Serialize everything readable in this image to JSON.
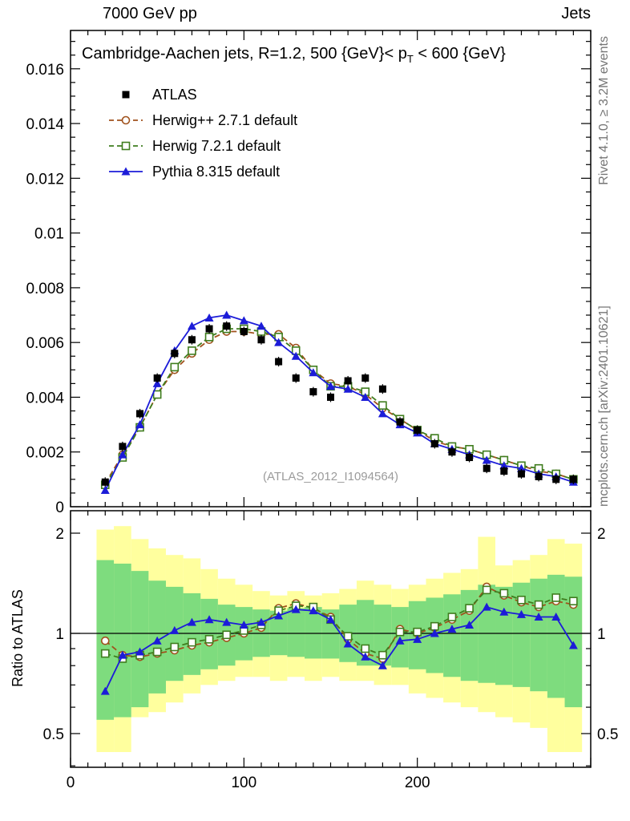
{
  "header": {
    "left": "7000 GeV pp",
    "right": "Jets"
  },
  "panel_title": {
    "prefix": "Cambridge-Aachen jets, R=1.2, 500 {GeV}< p",
    "sub": "T",
    "suffix": " < 600 {GeV}"
  },
  "watermark": "(ATLAS_2012_I1094564)",
  "side_notes": {
    "top": "Rivet 4.1.0, ≥ 3.2M events",
    "bottom": "mcplots.cern.ch [arXiv:2401.10621]"
  },
  "colors": {
    "atlas": "#000000",
    "herwigpp": "#a0521d",
    "herwig7": "#3f7d1e",
    "pythia": "#1c1cd8",
    "band_yellow": "#ffff9e",
    "band_green": "#7edc7e",
    "frame": "#000000",
    "watermark_gray": "#9b9b9b",
    "side_note_gray": "#757575"
  },
  "chart_data": {
    "type": "line",
    "title": "Cambridge-Aachen jets, R=1.2, 500 {GeV} < pT < 600 {GeV}",
    "xlabel": "",
    "ylabel": "",
    "xlim": [
      0,
      300
    ],
    "ylim": [
      0,
      0.0174
    ],
    "grid": false,
    "legend_position": "upper-left",
    "xticks": {
      "values": [
        0,
        100,
        200
      ],
      "labels": [
        "0",
        "100",
        "200"
      ]
    },
    "yticks": {
      "values": [
        0,
        0.002,
        0.004,
        0.006,
        0.008,
        0.01,
        0.012,
        0.014,
        0.016
      ],
      "labels": [
        "0",
        "0.002",
        "0.004",
        "0.006",
        "0.008",
        "0.01",
        "0.012",
        "0.014",
        "0.016"
      ]
    },
    "x": [
      20,
      30,
      40,
      50,
      60,
      70,
      80,
      90,
      100,
      110,
      120,
      130,
      140,
      150,
      160,
      170,
      180,
      190,
      200,
      210,
      220,
      230,
      240,
      250,
      260,
      270,
      280,
      290
    ],
    "series": [
      {
        "name": "ATLAS",
        "marker": "filled-square",
        "line": "none",
        "color_key": "atlas",
        "values": [
          0.0009,
          0.0022,
          0.0034,
          0.0047,
          0.0056,
          0.0061,
          0.0065,
          0.0066,
          0.0064,
          0.0061,
          0.0053,
          0.0047,
          0.0042,
          0.004,
          0.0046,
          0.0047,
          0.0043,
          0.0031,
          0.0028,
          0.0023,
          0.002,
          0.0018,
          0.0014,
          0.0013,
          0.0012,
          0.0011,
          0.001,
          0.001
        ]
      },
      {
        "name": "Herwig++ 2.7.1 default",
        "marker": "open-circle",
        "line": "dashed",
        "color_key": "herwigpp",
        "values": [
          0.00085,
          0.0019,
          0.0029,
          0.0041,
          0.005,
          0.0056,
          0.0061,
          0.0064,
          0.0064,
          0.0063,
          0.0063,
          0.0058,
          0.005,
          0.0045,
          0.0044,
          0.0041,
          0.0036,
          0.0032,
          0.0028,
          0.0024,
          0.0022,
          0.0021,
          0.0019,
          0.0017,
          0.0015,
          0.0013,
          0.0012,
          0.001
        ]
      },
      {
        "name": "Herwig 7.2.1 default",
        "marker": "open-square",
        "line": "dashed",
        "color_key": "herwig7",
        "values": [
          0.0008,
          0.0018,
          0.0029,
          0.0041,
          0.0051,
          0.0057,
          0.0062,
          0.0065,
          0.0065,
          0.0064,
          0.0062,
          0.0057,
          0.005,
          0.0044,
          0.0044,
          0.0042,
          0.0037,
          0.0032,
          0.0028,
          0.0025,
          0.0022,
          0.0021,
          0.0019,
          0.0017,
          0.0015,
          0.0014,
          0.0012,
          0.001
        ]
      },
      {
        "name": "Pythia 8.315 default",
        "marker": "filled-triangle",
        "line": "solid",
        "color_key": "pythia",
        "values": [
          0.0006,
          0.0019,
          0.003,
          0.0045,
          0.0057,
          0.0066,
          0.0069,
          0.007,
          0.0068,
          0.0066,
          0.006,
          0.0055,
          0.0049,
          0.0044,
          0.0043,
          0.004,
          0.0034,
          0.003,
          0.0027,
          0.0023,
          0.0021,
          0.0019,
          0.0017,
          0.0015,
          0.0014,
          0.0012,
          0.0011,
          0.0009
        ]
      }
    ],
    "ratio": {
      "ylabel": "Ratio to ATLAS",
      "ylim": [
        0.396,
        2.336
      ],
      "yscale": "log",
      "reference_line": 1,
      "yticks": {
        "values": [
          0.5,
          1,
          2
        ],
        "labels": [
          "0.5",
          "1",
          "2"
        ]
      },
      "series": [
        {
          "name": "Herwig++ 2.7.1 default",
          "marker": "open-circle",
          "line": "dashed",
          "color_key": "herwigpp",
          "values": [
            0.95,
            0.86,
            0.85,
            0.87,
            0.89,
            0.92,
            0.94,
            0.97,
            1.0,
            1.04,
            1.19,
            1.23,
            1.19,
            1.12,
            0.96,
            0.87,
            0.84,
            1.03,
            1.0,
            1.04,
            1.1,
            1.17,
            1.38,
            1.3,
            1.24,
            1.2,
            1.25,
            1.22
          ]
        },
        {
          "name": "Herwig 7.2.1 default",
          "marker": "open-square",
          "line": "dashed",
          "color_key": "herwig7",
          "values": [
            0.87,
            0.84,
            0.86,
            0.88,
            0.91,
            0.94,
            0.96,
            0.99,
            1.02,
            1.06,
            1.17,
            1.21,
            1.2,
            1.1,
            0.98,
            0.9,
            0.86,
            1.01,
            1.01,
            1.05,
            1.12,
            1.19,
            1.35,
            1.32,
            1.26,
            1.22,
            1.28,
            1.25
          ]
        },
        {
          "name": "Pythia 8.315 default",
          "marker": "filled-triangle",
          "line": "solid",
          "color_key": "pythia",
          "values": [
            0.67,
            0.86,
            0.88,
            0.95,
            1.02,
            1.08,
            1.1,
            1.08,
            1.06,
            1.08,
            1.13,
            1.18,
            1.17,
            1.1,
            0.93,
            0.85,
            0.8,
            0.95,
            0.96,
            1.0,
            1.03,
            1.06,
            1.2,
            1.16,
            1.14,
            1.12,
            1.12,
            0.92
          ]
        }
      ],
      "bands": {
        "bin_half_width": 5,
        "yellow": {
          "lo": [
            0.44,
            0.44,
            0.56,
            0.58,
            0.62,
            0.66,
            0.7,
            0.72,
            0.74,
            0.74,
            0.72,
            0.74,
            0.72,
            0.74,
            0.72,
            0.72,
            0.7,
            0.7,
            0.66,
            0.64,
            0.62,
            0.6,
            0.58,
            0.56,
            0.54,
            0.52,
            0.44,
            0.44
          ],
          "hi": [
            2.05,
            2.1,
            1.92,
            1.8,
            1.72,
            1.68,
            1.56,
            1.46,
            1.4,
            1.34,
            1.3,
            1.34,
            1.3,
            1.32,
            1.36,
            1.44,
            1.4,
            1.36,
            1.4,
            1.46,
            1.52,
            1.56,
            1.95,
            1.6,
            1.66,
            1.72,
            1.92,
            1.86
          ]
        },
        "green": {
          "lo": [
            0.55,
            0.56,
            0.6,
            0.66,
            0.72,
            0.75,
            0.78,
            0.8,
            0.83,
            0.85,
            0.86,
            0.85,
            0.84,
            0.84,
            0.82,
            0.8,
            0.8,
            0.79,
            0.78,
            0.76,
            0.74,
            0.72,
            0.71,
            0.7,
            0.69,
            0.67,
            0.64,
            0.6
          ],
          "hi": [
            1.66,
            1.62,
            1.54,
            1.44,
            1.38,
            1.32,
            1.27,
            1.22,
            1.2,
            1.18,
            1.17,
            1.19,
            1.2,
            1.18,
            1.22,
            1.26,
            1.22,
            1.2,
            1.25,
            1.28,
            1.31,
            1.35,
            1.4,
            1.38,
            1.42,
            1.46,
            1.5,
            1.48
          ]
        }
      }
    }
  }
}
